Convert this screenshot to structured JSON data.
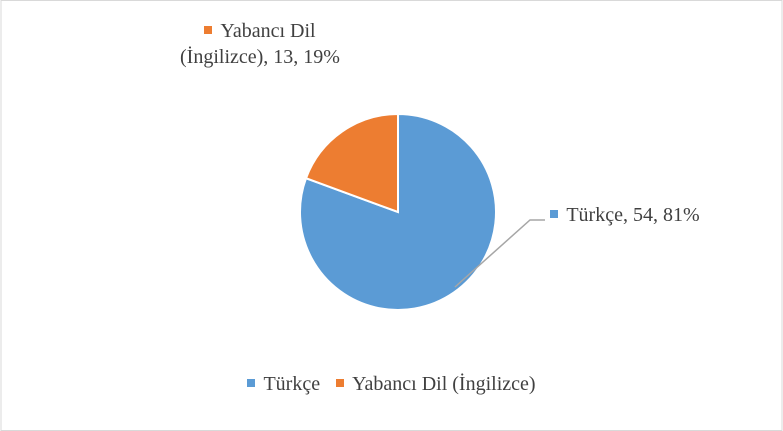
{
  "chart_data": {
    "type": "pie",
    "categories": [
      "Türkçe",
      "Yabancı Dil (İngilizce)"
    ],
    "values": [
      54,
      13
    ],
    "data_labels": [
      "Türkçe, 54, 81%",
      "Yabancı Dil (İngilizce), 13, 19%"
    ],
    "colors": [
      "#5b9bd5",
      "#ed7d31"
    ],
    "legend": "bottom"
  }
}
